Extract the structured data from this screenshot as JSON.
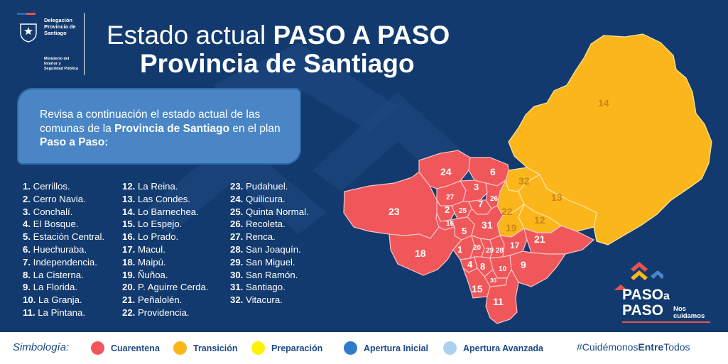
{
  "header": {
    "logo_line1": "Delegación\nProvincia de\nSantiago",
    "logo_line2": "Ministerio del\nInterior y\nSeguridad Pública",
    "title_prefix": "Estado actual ",
    "title_bold": "PASO A PASO",
    "title_line2": "Provincia de Santiago"
  },
  "intro": {
    "part1": "Revisa a continuación el estado actual de las comunas de la ",
    "bold1": "Provincia de Santiago",
    "part2": " en el plan ",
    "bold2": "Paso a Paso:"
  },
  "communes": [
    {
      "num": "1.",
      "name": "Cerrillos.",
      "status": "Cuarentena"
    },
    {
      "num": "2.",
      "name": "Cerro Navia.",
      "status": "Cuarentena"
    },
    {
      "num": "3.",
      "name": "Conchalí.",
      "status": "Cuarentena"
    },
    {
      "num": "4.",
      "name": "El Bosque.",
      "status": "Cuarentena"
    },
    {
      "num": "5.",
      "name": "Estación Central.",
      "status": "Cuarentena"
    },
    {
      "num": "6.",
      "name": "Huechuraba.",
      "status": "Cuarentena"
    },
    {
      "num": "7.",
      "name": "Independencia.",
      "status": "Cuarentena"
    },
    {
      "num": "8.",
      "name": "La Cisterna.",
      "status": "Cuarentena"
    },
    {
      "num": "9.",
      "name": "La Florida.",
      "status": "Cuarentena"
    },
    {
      "num": "10.",
      "name": "La Granja.",
      "status": "Cuarentena"
    },
    {
      "num": "11.",
      "name": "La Pintana.",
      "status": "Cuarentena"
    },
    {
      "num": "12.",
      "name": "La Reina.",
      "status": "Transición"
    },
    {
      "num": "13.",
      "name": "Las Condes.",
      "status": "Transición"
    },
    {
      "num": "14.",
      "name": "Lo Barnechea.",
      "status": "Transición"
    },
    {
      "num": "15.",
      "name": "Lo Espejo.",
      "status": "Cuarentena"
    },
    {
      "num": "16.",
      "name": "Lo Prado.",
      "status": "Cuarentena"
    },
    {
      "num": "17.",
      "name": "Macul.",
      "status": "Cuarentena"
    },
    {
      "num": "18.",
      "name": "Maipú.",
      "status": "Cuarentena"
    },
    {
      "num": "19.",
      "name": "Ñuñoa.",
      "status": "Transición"
    },
    {
      "num": "20.",
      "name": "P. Aguirre Cerda.",
      "status": "Cuarentena"
    },
    {
      "num": "21.",
      "name": "Peñalolén.",
      "status": "Cuarentena"
    },
    {
      "num": "22.",
      "name": "Providencia.",
      "status": "Transición"
    },
    {
      "num": "23.",
      "name": "Pudahuel.",
      "status": "Cuarentena"
    },
    {
      "num": "24.",
      "name": "Quilicura.",
      "status": "Cuarentena"
    },
    {
      "num": "25.",
      "name": "Quinta Normal.",
      "status": "Cuarentena"
    },
    {
      "num": "26.",
      "name": "Recoleta.",
      "status": "Cuarentena"
    },
    {
      "num": "27.",
      "name": "Renca.",
      "status": "Cuarentena"
    },
    {
      "num": "28.",
      "name": "San Joaquín.",
      "status": "Cuarentena"
    },
    {
      "num": "29.",
      "name": "San Miguel.",
      "status": "Cuarentena"
    },
    {
      "num": "30.",
      "name": "San Ramón.",
      "status": "Cuarentena"
    },
    {
      "num": "31.",
      "name": "Santiago.",
      "status": "Cuarentena"
    },
    {
      "num": "32.",
      "name": "Vitacura.",
      "status": "Transición"
    }
  ],
  "map_labels": {
    "l1": "1",
    "l2": "2",
    "l3": "3",
    "l4": "4",
    "l5": "5",
    "l6": "6",
    "l7": "7",
    "l8": "8",
    "l9": "9",
    "l10": "10",
    "l11": "11",
    "l12": "12",
    "l13": "13",
    "l14": "14",
    "l15": "15",
    "l16": "16",
    "l17": "17",
    "l18": "18",
    "l19": "19",
    "l20": "20",
    "l21": "21",
    "l22": "22",
    "l23": "23",
    "l24": "24",
    "l25": "25",
    "l26": "26",
    "l27": "27",
    "l28": "28",
    "l29": "29",
    "l30": "30",
    "l31": "31",
    "l32": "32"
  },
  "legend": {
    "label": "Simbología:",
    "items": [
      {
        "label": "Cuarentena",
        "color": "#f0575b"
      },
      {
        "label": "Transición",
        "color": "#fab61b"
      },
      {
        "label": "Preparación",
        "color": "#fff200"
      },
      {
        "label": "Apertura Inicial",
        "color": "#2f7dc9"
      },
      {
        "label": "Apertura Avanzada",
        "color": "#a9d1f2"
      }
    ]
  },
  "hashtag": {
    "part1": "#Cuidémonos",
    "part2": "Entre",
    "part3": "Todos"
  },
  "brand": {
    "word1": "PASO",
    "word1_small": "a",
    "word2": "PASO",
    "sub": "Nos\ncuidamos"
  },
  "colors": {
    "background": "#123a6e",
    "quarantine": "#f0575b",
    "transition": "#fab61b",
    "preparation": "#fff200",
    "initial_opening": "#2f7dc9",
    "advanced_opening": "#a9d1f2"
  },
  "icons": {
    "logo": "chile-government-shield-icon",
    "brand": "paso-a-paso-chevrons-icon"
  }
}
